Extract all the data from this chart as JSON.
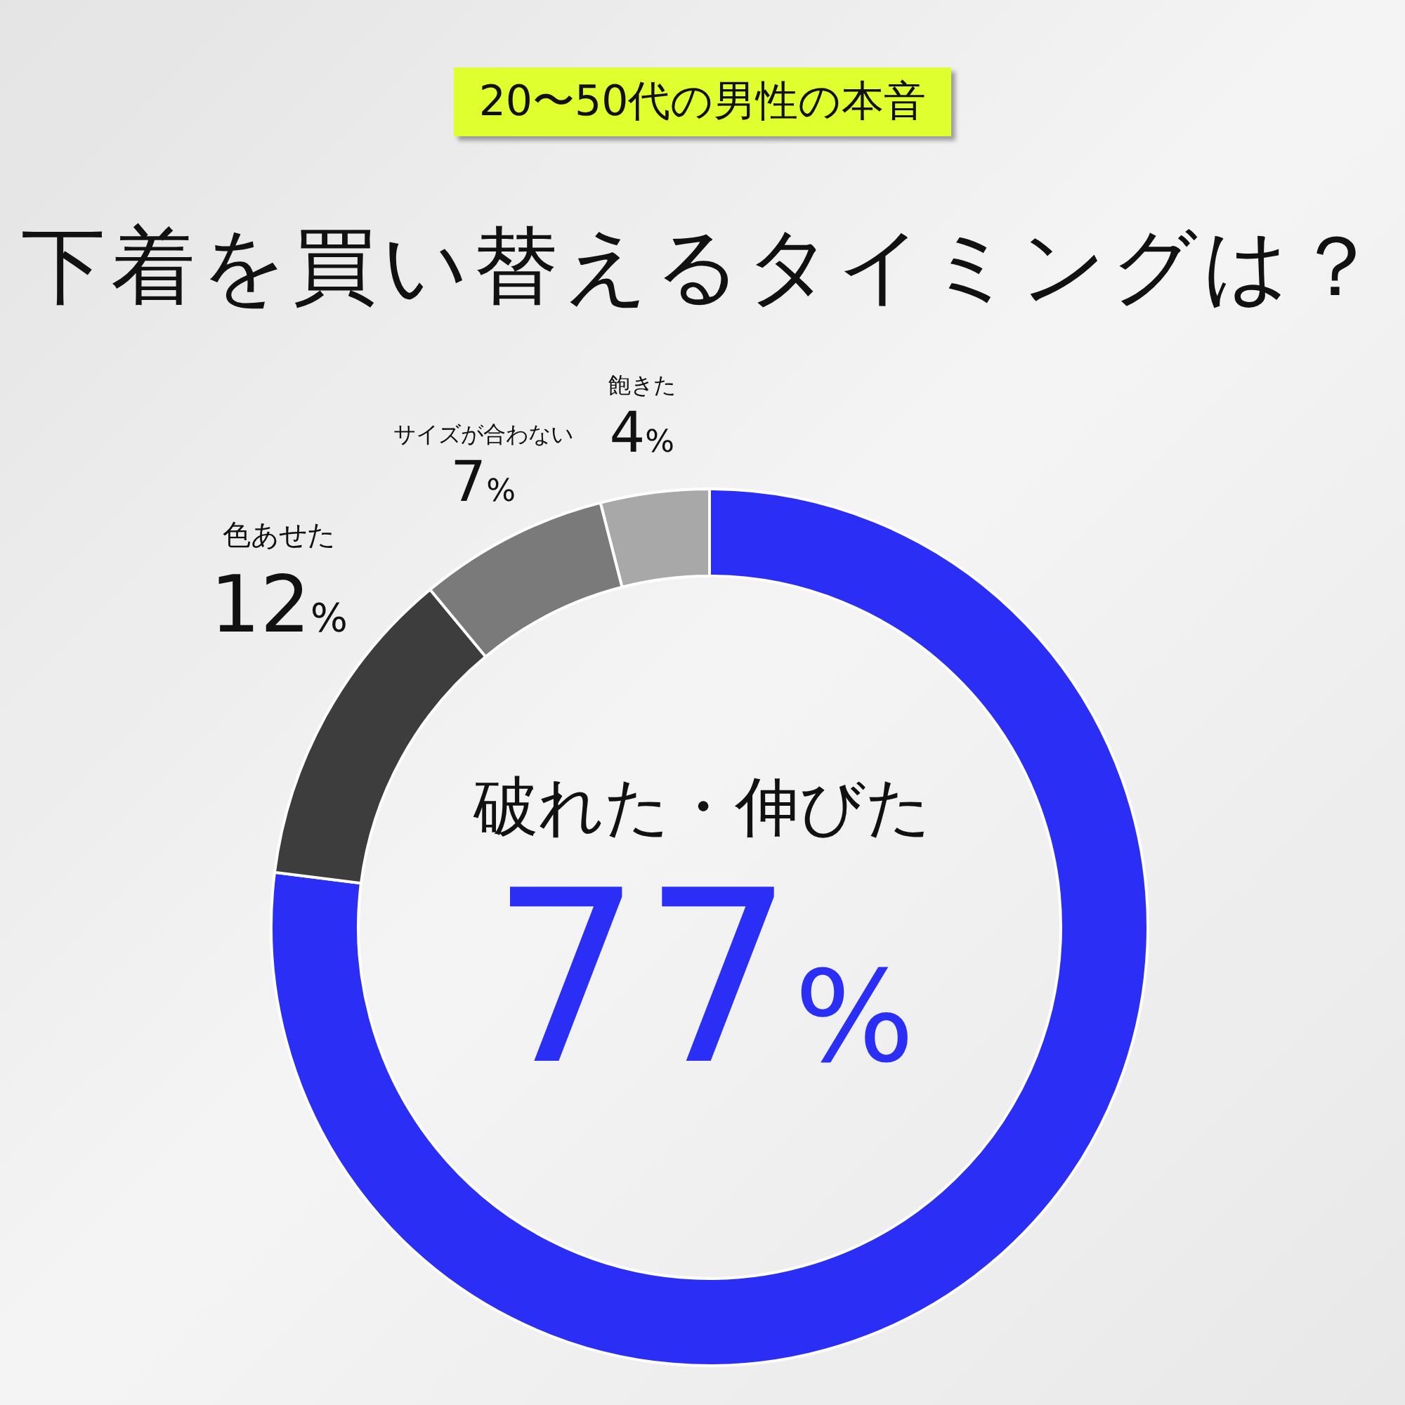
{
  "chart_data": {
    "type": "donut",
    "title": "下着を買い替えるタイミングは？",
    "subtitle": "20〜50代の男性の本音",
    "categories": [
      "破れた・伸びた",
      "色あせた",
      "サイズが合わない",
      "飽きた"
    ],
    "values": [
      77,
      12,
      7,
      4
    ],
    "value_labels": [
      "77%",
      "12%",
      "7%",
      "4%"
    ],
    "colors": [
      "#2b2ef5",
      "#3d3d3d",
      "#7a7a7a",
      "#a8a8a8"
    ]
  }
}
